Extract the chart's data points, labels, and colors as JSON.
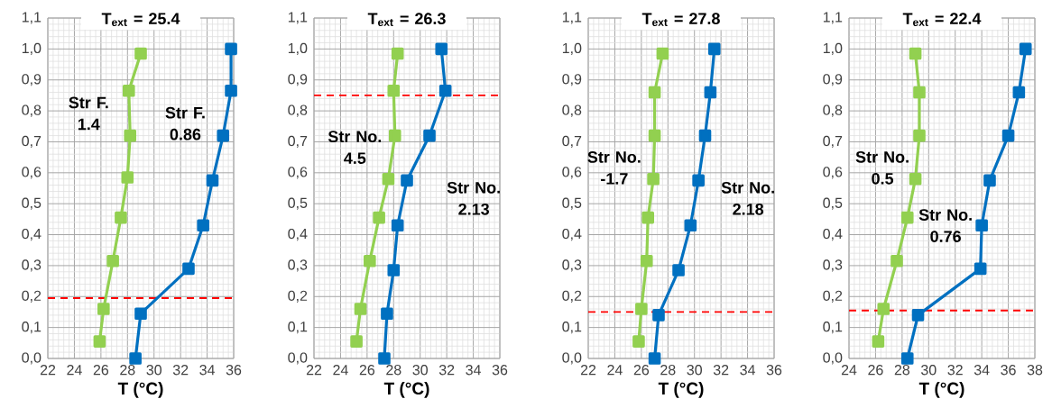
{
  "chart_data": [
    {
      "type": "line",
      "title": "T$_{ext}$ = 25.4",
      "xlabel": "T (°C)",
      "xlim": [
        22,
        36
      ],
      "xticks": [
        22,
        24,
        26,
        28,
        30,
        32,
        34,
        36
      ],
      "ylim": [
        0,
        1.1
      ],
      "yticks": [
        {
          "value": 0,
          "label": "0,0"
        },
        {
          "value": 0.1,
          "label": "0,1"
        },
        {
          "value": 0.2,
          "label": "0,2"
        },
        {
          "value": 0.3,
          "label": "0,3"
        },
        {
          "value": 0.4,
          "label": "0,4"
        },
        {
          "value": 0.5,
          "label": "0,5"
        },
        {
          "value": 0.6,
          "label": "0,6"
        },
        {
          "value": 0.7,
          "label": "0,7"
        },
        {
          "value": 0.8,
          "label": "0,8"
        },
        {
          "value": 0.9,
          "label": "0,9"
        },
        {
          "value": 1.0,
          "label": "1,0"
        },
        {
          "value": 1.1,
          "label": "1,1"
        }
      ],
      "grid": true,
      "marker": "square",
      "line_style": "solid",
      "series": [
        {
          "name": "Str F. 1.4",
          "color": "#92d050",
          "x": [
            25.9,
            26.2,
            26.9,
            27.5,
            28.0,
            28.2,
            28.1,
            29.0
          ],
          "values": [
            0.055,
            0.16,
            0.315,
            0.455,
            0.585,
            0.72,
            0.865,
            0.985
          ]
        },
        {
          "name": "Str F. 0.86",
          "color": "#0070c0",
          "x": [
            28.6,
            29.0,
            32.6,
            33.7,
            34.4,
            35.2,
            35.8,
            35.8
          ],
          "values": [
            0,
            0.145,
            0.29,
            0.43,
            0.575,
            0.72,
            0.865,
            1.0
          ]
        }
      ],
      "ref_lines": [
        {
          "axis": "y",
          "value": 0.195,
          "color": "#ff0000",
          "line_style": "dashed"
        }
      ]
    },
    {
      "type": "line",
      "title": "T$_{ext}$ = 26.3",
      "xlabel": "T (°C)",
      "xlim": [
        22,
        36
      ],
      "xticks": [
        22,
        24,
        26,
        28,
        30,
        32,
        34,
        36
      ],
      "ylim": [
        0,
        1.1
      ],
      "yticks": [
        {
          "value": 0,
          "label": "0,0"
        },
        {
          "value": 0.1,
          "label": "0,1"
        },
        {
          "value": 0.2,
          "label": "0,2"
        },
        {
          "value": 0.3,
          "label": "0,3"
        },
        {
          "value": 0.4,
          "label": "0,4"
        },
        {
          "value": 0.5,
          "label": "0,5"
        },
        {
          "value": 0.6,
          "label": "0,6"
        },
        {
          "value": 0.7,
          "label": "0,7"
        },
        {
          "value": 0.8,
          "label": "0,8"
        },
        {
          "value": 0.9,
          "label": "0,9"
        },
        {
          "value": 1.0,
          "label": "1,0"
        },
        {
          "value": 1.1,
          "label": "1,1"
        }
      ],
      "grid": true,
      "marker": "square",
      "line_style": "solid",
      "series": [
        {
          "name": "Str No. 4.5",
          "color": "#92d050",
          "x": [
            25.2,
            25.5,
            26.2,
            26.9,
            27.6,
            28.1,
            28.0,
            28.3
          ],
          "values": [
            0.055,
            0.16,
            0.315,
            0.455,
            0.58,
            0.72,
            0.865,
            0.985
          ]
        },
        {
          "name": "Str No. 2.13",
          "color": "#0070c0",
          "x": [
            27.3,
            27.5,
            28.0,
            28.3,
            29.0,
            30.7,
            31.9,
            31.6
          ],
          "values": [
            0,
            0.145,
            0.285,
            0.43,
            0.575,
            0.72,
            0.865,
            1.0
          ]
        }
      ],
      "ref_lines": [
        {
          "axis": "y",
          "value": 0.85,
          "color": "#ff0000",
          "line_style": "dashed"
        }
      ]
    },
    {
      "type": "line",
      "title": "T$_{ext}$ = 27.8",
      "xlabel": "T (°C)",
      "xlim": [
        22,
        36
      ],
      "xticks": [
        22,
        24,
        26,
        28,
        30,
        32,
        34,
        36
      ],
      "ylim": [
        0,
        1.1
      ],
      "yticks": [
        {
          "value": 0,
          "label": "0,0"
        },
        {
          "value": 0.1,
          "label": "0,1"
        },
        {
          "value": 0.2,
          "label": "0,2"
        },
        {
          "value": 0.3,
          "label": "0,3"
        },
        {
          "value": 0.4,
          "label": "0,4"
        },
        {
          "value": 0.5,
          "label": "0,5"
        },
        {
          "value": 0.6,
          "label": "0,6"
        },
        {
          "value": 0.7,
          "label": "0,7"
        },
        {
          "value": 0.8,
          "label": "0,8"
        },
        {
          "value": 0.9,
          "label": "0,9"
        },
        {
          "value": 1.0,
          "label": "1,0"
        },
        {
          "value": 1.1,
          "label": "1,1"
        }
      ],
      "grid": true,
      "marker": "square",
      "line_style": "solid",
      "series": [
        {
          "name": "Str No. -1.7",
          "color": "#92d050",
          "x": [
            25.8,
            26.0,
            26.4,
            26.5,
            26.9,
            27.0,
            27.0,
            27.6
          ],
          "values": [
            0.055,
            0.16,
            0.315,
            0.455,
            0.58,
            0.72,
            0.86,
            0.985
          ]
        },
        {
          "name": "Str No. 2.18",
          "color": "#0070c0",
          "x": [
            27.0,
            27.3,
            28.8,
            29.7,
            30.3,
            30.8,
            31.2,
            31.5
          ],
          "values": [
            0,
            0.14,
            0.285,
            0.43,
            0.575,
            0.72,
            0.86,
            1.0
          ]
        }
      ],
      "ref_lines": [
        {
          "axis": "y",
          "value": 0.15,
          "color": "#ff0000",
          "line_style": "dashed"
        }
      ]
    },
    {
      "type": "line",
      "title": "T$_{ext}$ = 22.4",
      "xlabel": "T (°C)",
      "xlim": [
        24,
        38
      ],
      "xticks": [
        24,
        26,
        28,
        30,
        32,
        34,
        36,
        38
      ],
      "ylim": [
        0,
        1.1
      ],
      "yticks": [
        {
          "value": 0,
          "label": "0,0"
        },
        {
          "value": 0.1,
          "label": "0,1"
        },
        {
          "value": 0.2,
          "label": "0,2"
        },
        {
          "value": 0.3,
          "label": "0,3"
        },
        {
          "value": 0.4,
          "label": "0,4"
        },
        {
          "value": 0.5,
          "label": "0,5"
        },
        {
          "value": 0.6,
          "label": "0,6"
        },
        {
          "value": 0.7,
          "label": "0,7"
        },
        {
          "value": 0.8,
          "label": "0,8"
        },
        {
          "value": 0.9,
          "label": "0,9"
        },
        {
          "value": 1.0,
          "label": "1,0"
        },
        {
          "value": 1.1,
          "label": "1,1"
        }
      ],
      "grid": true,
      "marker": "square",
      "line_style": "solid",
      "series": [
        {
          "name": "Str No. 0.5",
          "color": "#92d050",
          "x": [
            26.2,
            26.6,
            27.6,
            28.4,
            29.0,
            29.3,
            29.3,
            29.0
          ],
          "values": [
            0.055,
            0.16,
            0.315,
            0.455,
            0.58,
            0.72,
            0.86,
            0.985
          ]
        },
        {
          "name": "Str No. 0.76",
          "color": "#0070c0",
          "x": [
            28.4,
            29.2,
            33.9,
            34.0,
            34.6,
            36.0,
            36.8,
            37.3
          ],
          "values": [
            0,
            0.14,
            0.29,
            0.43,
            0.575,
            0.72,
            0.86,
            1.0
          ]
        }
      ],
      "ref_lines": [
        {
          "axis": "y",
          "value": 0.155,
          "color": "#ff0000",
          "line_style": "dashed"
        }
      ]
    }
  ]
}
